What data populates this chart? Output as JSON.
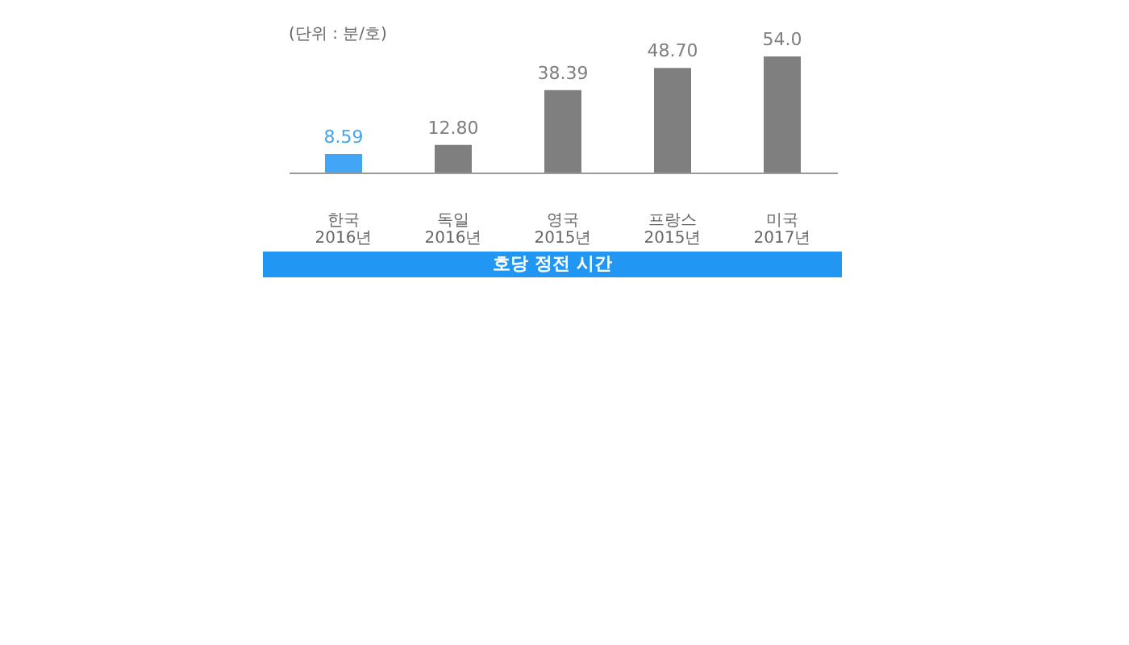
{
  "chart_data": {
    "type": "bar",
    "title": "호당 정전 시간",
    "annotations": [
      "(단위 : 분/호)"
    ],
    "categories": [
      "한국\n2016년",
      "독일\n2016년",
      "영국\n2015년",
      "프랑스\n2015년",
      "미국\n2017년"
    ],
    "values": [
      8.59,
      12.8,
      38.39,
      48.7,
      54.0
    ],
    "colors": [
      "#42a5f5",
      "#7f7f7f",
      "#7f7f7f",
      "#7f7f7f",
      "#7f7f7f"
    ],
    "value_labels": [
      "8.59",
      "12.80",
      "38.39",
      "48.70",
      "54.0"
    ]
  }
}
